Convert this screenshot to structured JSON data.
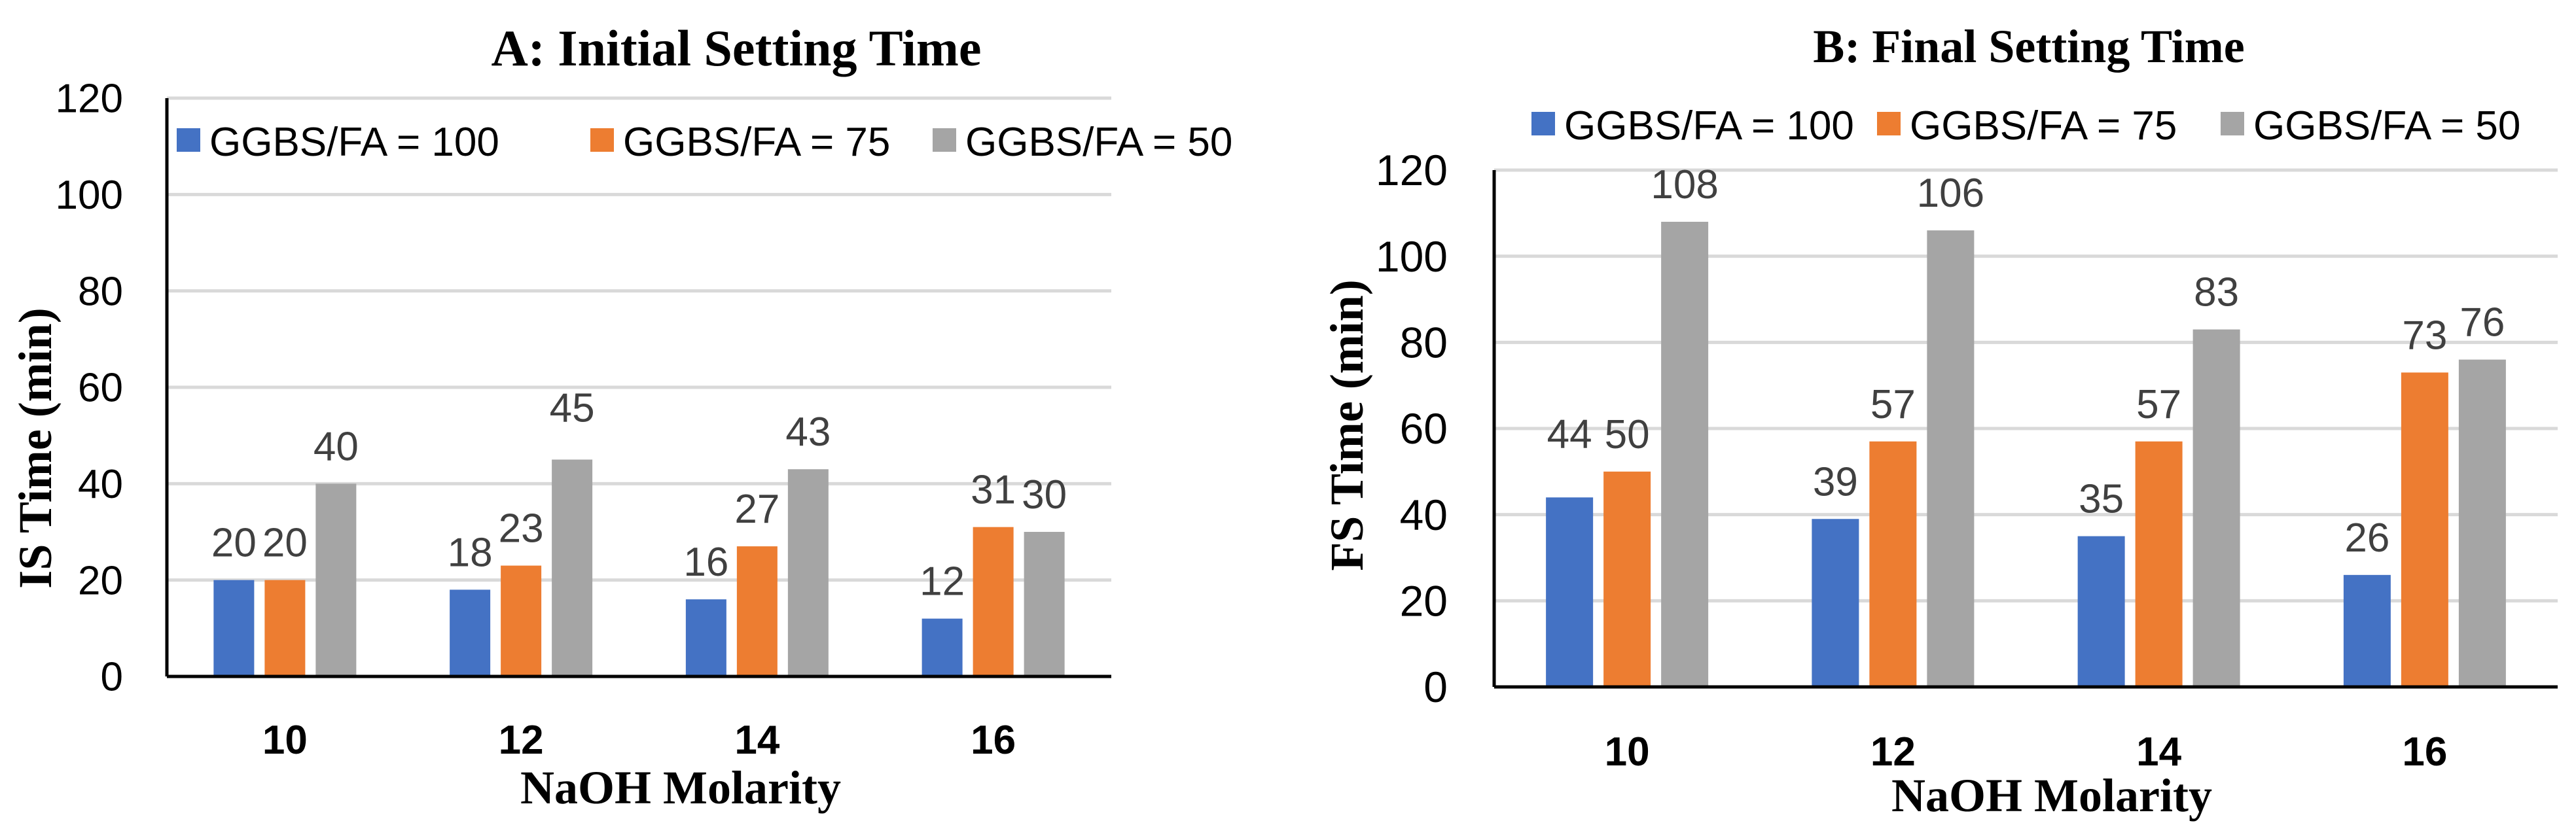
{
  "chart_data": [
    {
      "type": "bar",
      "title": "A: Initial Setting Time",
      "xlabel": "NaOH Molarity",
      "ylabel": "IS Time (min)",
      "categories": [
        "10",
        "12",
        "14",
        "16"
      ],
      "ylim": [
        0,
        120
      ],
      "yticks": [
        0,
        20,
        40,
        60,
        80,
        100,
        120
      ],
      "grid": true,
      "legend_position": "top",
      "series": [
        {
          "name": "GGBS/FA = 100",
          "color": "#4472C4",
          "values": [
            20,
            18,
            16,
            12
          ]
        },
        {
          "name": "GGBS/FA = 75",
          "color": "#ED7D31",
          "values": [
            20,
            23,
            27,
            31
          ]
        },
        {
          "name": "GGBS/FA = 50",
          "color": "#A5A5A5",
          "values": [
            40,
            45,
            43,
            30
          ]
        }
      ]
    },
    {
      "type": "bar",
      "title": "B: Final Setting Time",
      "xlabel": "NaOH Molarity",
      "ylabel": "FS Time (min)",
      "categories": [
        "10",
        "12",
        "14",
        "16"
      ],
      "ylim": [
        0,
        120
      ],
      "yticks": [
        0,
        20,
        40,
        60,
        80,
        100,
        120
      ],
      "grid": true,
      "legend_position": "top",
      "series": [
        {
          "name": "GGBS/FA = 100",
          "color": "#4472C4",
          "values": [
            44,
            39,
            35,
            26
          ]
        },
        {
          "name": "GGBS/FA = 75",
          "color": "#ED7D31",
          "values": [
            50,
            57,
            57,
            73
          ]
        },
        {
          "name": "GGBS/FA = 50",
          "color": "#A5A5A5",
          "values": [
            108,
            106,
            83,
            76
          ]
        }
      ]
    }
  ]
}
